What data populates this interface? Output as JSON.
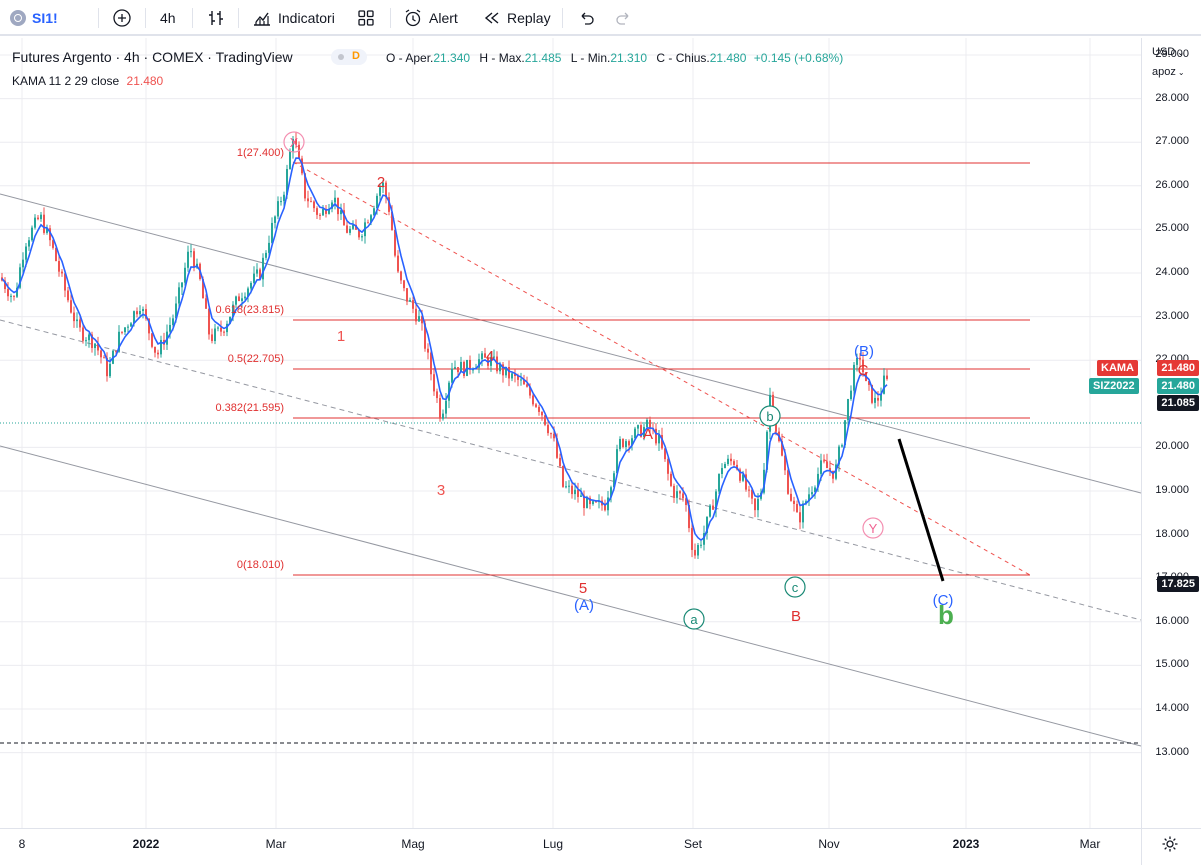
{
  "toolbar": {
    "symbol": "SI1!",
    "interval": "4h",
    "indicators_label": "Indicatori",
    "alert_label": "Alert",
    "replay_label": "Replay"
  },
  "legend": {
    "title": "Futures Argento · 4h · COMEX · TradingView",
    "d_badge": "D",
    "open_label": "O - Aper.",
    "open": "21.340",
    "high_label": "H - Max.",
    "high": "21.485",
    "low_label": "L - Min.",
    "low": "21.310",
    "close_label": "C - Chius.",
    "close": "21.480",
    "change": "+0.145 (+0.68%)",
    "indicator": "KAMA 11 2 29 close",
    "indicator_value": "21.480"
  },
  "price_axis": {
    "currency": "USD",
    "mode": "apoz",
    "ticks": [
      "29.000",
      "28.000",
      "27.000",
      "26.000",
      "25.000",
      "24.000",
      "23.000",
      "22.000",
      "20.000",
      "19.000",
      "18.000",
      "17.000",
      "16.000",
      "15.000",
      "14.000",
      "13.000"
    ],
    "badges": {
      "kama_label": "KAMA",
      "kama_value": "21.480",
      "sym_label": "SIZ2022",
      "sym_value": "21.480",
      "price_21085": "21.085",
      "price_17825": "17.825"
    }
  },
  "time_axis": {
    "labels": [
      "8",
      "2022",
      "Mar",
      "Mag",
      "Lug",
      "Set",
      "Nov",
      "2023",
      "Mar"
    ]
  },
  "fib_levels": {
    "l1": "1(27.400)",
    "l0618": "0.618(23.815)",
    "l05": "0.5(22.705)",
    "l0382": "0.382(21.595)",
    "l0": "0(18.010)"
  },
  "wave_labels": {
    "X": "X",
    "Y": "Y",
    "n1": "1",
    "n2": "2",
    "n3": "3",
    "n4": "4",
    "n5": "5",
    "A": "A",
    "B": "B",
    "C": "C",
    "pA": "(A)",
    "pB": "(B)",
    "pC": "(C)",
    "a": "a",
    "b": "b",
    "c": "c",
    "bigb": "b"
  },
  "colors": {
    "up": "#26a69a",
    "down": "#ef5350",
    "kama": "#2962ff",
    "fib": "#e03030",
    "wave_blue": "#2962ff",
    "wave_green": "#1b8a76",
    "wave_big_green": "#4caf50",
    "grid": "#ececf0"
  }
}
